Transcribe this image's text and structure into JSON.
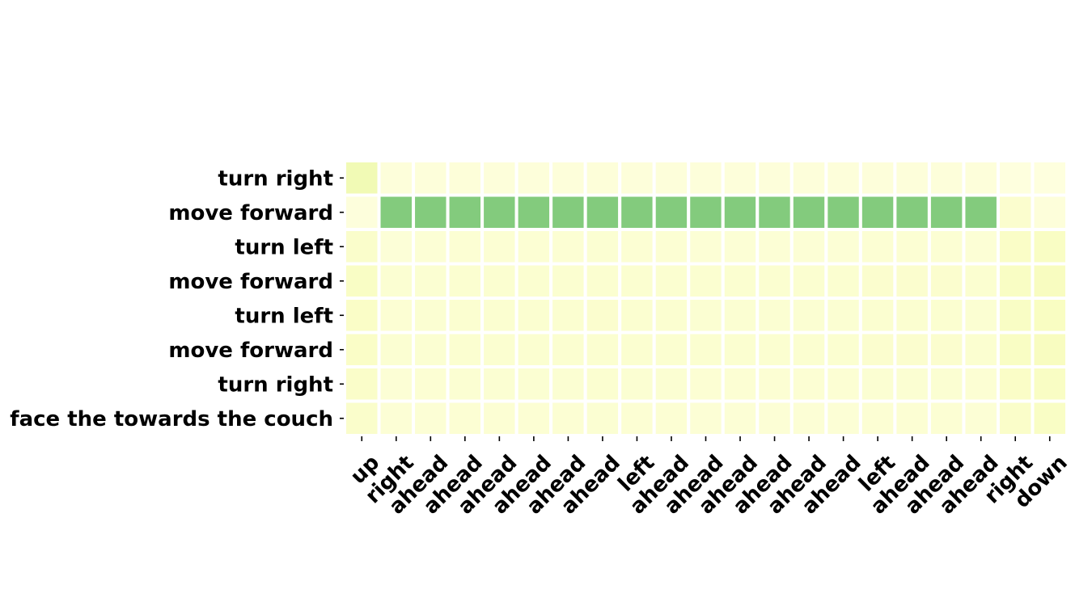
{
  "chart_data": {
    "type": "heatmap",
    "title": "",
    "xlabel": "",
    "ylabel": "",
    "rows": [
      "turn right",
      "move forward",
      "turn left",
      "move forward",
      "turn left",
      "move forward",
      "turn right",
      "face the towards the couch"
    ],
    "columns": [
      "up",
      "right",
      "ahead",
      "ahead",
      "ahead",
      "ahead",
      "ahead",
      "ahead",
      "left",
      "ahead",
      "ahead",
      "ahead",
      "ahead",
      "ahead",
      "ahead",
      "left",
      "ahead",
      "ahead",
      "ahead",
      "right",
      "down"
    ],
    "values": [
      [
        0.3,
        0.06,
        0.06,
        0.07,
        0.06,
        0.06,
        0.06,
        0.07,
        0.06,
        0.06,
        0.06,
        0.06,
        0.06,
        0.06,
        0.06,
        0.06,
        0.06,
        0.06,
        0.06,
        0.04,
        0.04
      ],
      [
        0.05,
        0.95,
        0.95,
        0.95,
        0.95,
        0.95,
        0.95,
        0.95,
        0.95,
        0.95,
        0.95,
        0.95,
        0.95,
        0.95,
        0.95,
        0.95,
        0.95,
        0.95,
        0.95,
        0.13,
        0.06
      ],
      [
        0.15,
        0.08,
        0.09,
        0.1,
        0.1,
        0.1,
        0.1,
        0.11,
        0.1,
        0.1,
        0.09,
        0.09,
        0.09,
        0.09,
        0.09,
        0.1,
        0.1,
        0.1,
        0.09,
        0.17,
        0.19
      ],
      [
        0.18,
        0.11,
        0.11,
        0.12,
        0.12,
        0.12,
        0.12,
        0.12,
        0.12,
        0.12,
        0.12,
        0.12,
        0.12,
        0.12,
        0.12,
        0.13,
        0.13,
        0.13,
        0.12,
        0.19,
        0.21
      ],
      [
        0.17,
        0.1,
        0.11,
        0.12,
        0.12,
        0.12,
        0.12,
        0.13,
        0.12,
        0.12,
        0.11,
        0.11,
        0.11,
        0.11,
        0.11,
        0.12,
        0.12,
        0.12,
        0.11,
        0.18,
        0.2
      ],
      [
        0.17,
        0.11,
        0.11,
        0.12,
        0.12,
        0.12,
        0.12,
        0.12,
        0.12,
        0.12,
        0.12,
        0.12,
        0.12,
        0.12,
        0.12,
        0.13,
        0.13,
        0.13,
        0.12,
        0.19,
        0.21
      ],
      [
        0.16,
        0.09,
        0.1,
        0.11,
        0.11,
        0.11,
        0.11,
        0.12,
        0.11,
        0.11,
        0.1,
        0.1,
        0.1,
        0.1,
        0.1,
        0.11,
        0.11,
        0.11,
        0.1,
        0.17,
        0.19
      ],
      [
        0.15,
        0.09,
        0.09,
        0.1,
        0.1,
        0.1,
        0.1,
        0.11,
        0.1,
        0.1,
        0.09,
        0.09,
        0.09,
        0.09,
        0.09,
        0.1,
        0.1,
        0.1,
        0.09,
        0.16,
        0.18
      ]
    ],
    "range": [
      0,
      1
    ],
    "colormap": [
      "#ffffe5",
      "#f7fcb9",
      "#d9f0a3",
      "#addd8e",
      "#78c679"
    ],
    "grid": false,
    "legend": "none"
  }
}
